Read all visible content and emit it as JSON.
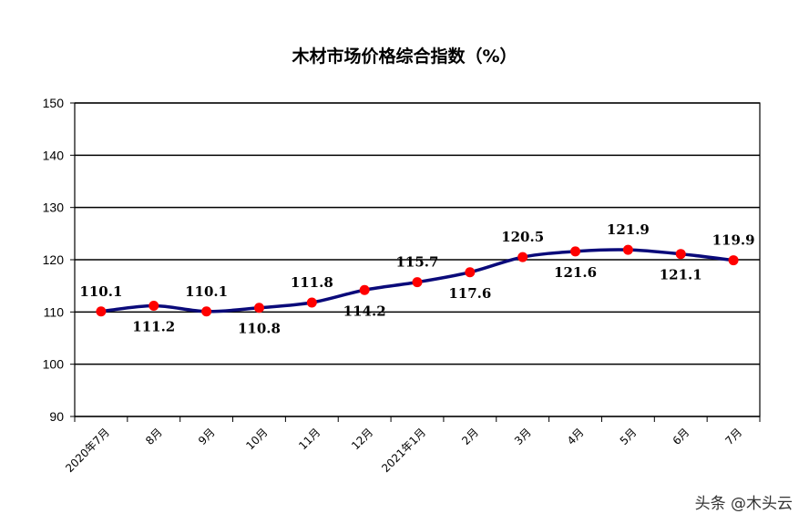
{
  "chart_data": {
    "type": "line",
    "title": "木材市场价格综合指数（%）",
    "categories": [
      "2020年7月",
      "8月",
      "9月",
      "10月",
      "11月",
      "12月",
      "2021年1月",
      "2月",
      "3月",
      "4月",
      "5月",
      "6月",
      "7月"
    ],
    "values": [
      110.1,
      111.2,
      110.1,
      110.8,
      111.8,
      114.2,
      115.7,
      117.6,
      120.5,
      121.6,
      121.9,
      121.1,
      119.9
    ],
    "data_labels": [
      "110.1",
      "111.2",
      "110.1",
      "110.8",
      "111.8",
      "114.2",
      "115.7",
      "117.6",
      "120.5",
      "121.6",
      "121.9",
      "121.1",
      "119.9"
    ],
    "label_positions": [
      "above",
      "below",
      "above",
      "below",
      "above",
      "below",
      "above",
      "below",
      "above",
      "below",
      "above",
      "below",
      "above"
    ],
    "ylim": [
      90,
      150
    ],
    "yticks": [
      "90",
      "100",
      "110",
      "120",
      "130",
      "140",
      "150"
    ],
    "grid": true,
    "line_color": "#0a0a7a",
    "marker_color": "#ff0000"
  },
  "watermark": "头条 @木头云"
}
